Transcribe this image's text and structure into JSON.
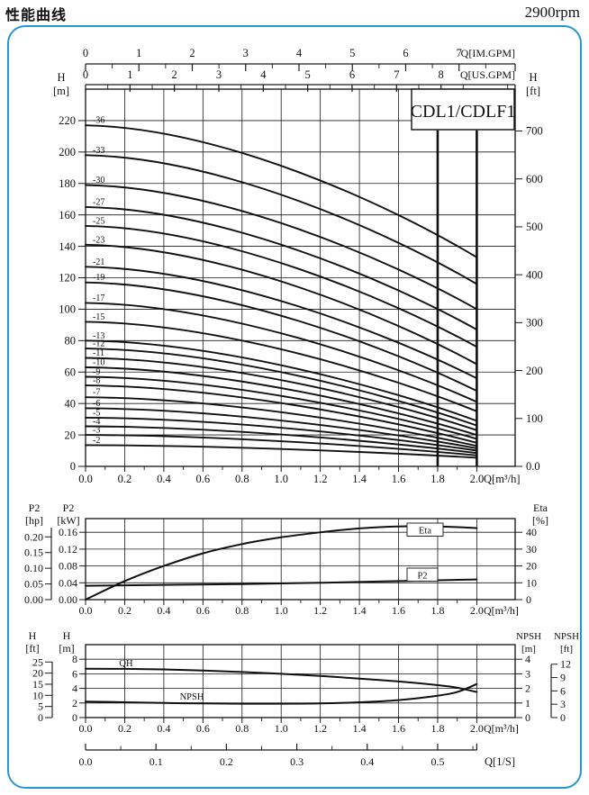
{
  "page": {
    "title": "性能曲线",
    "rpm": "2900rpm"
  },
  "colors": {
    "frame": "#2996d3",
    "line": "#111111",
    "grid": "#1a1a1a",
    "box_bg": "#ffffff"
  },
  "chart_data": [
    {
      "type": "line",
      "id": "head_chart",
      "title": "CDL1/CDLF1",
      "xlabel": "Q[m³/h]",
      "x_ticks": [
        "0.0",
        "0.2",
        "0.4",
        "0.6",
        "0.8",
        "1.0",
        "1.2",
        "1.4",
        "1.6",
        "1.8",
        "2.0"
      ],
      "q_range": [
        0,
        2.0
      ],
      "h_range_m": [
        0,
        240
      ],
      "ylabel_left": [
        "H",
        "[m]"
      ],
      "ylabel_right": [
        "H",
        "[ft]"
      ],
      "y_ticks_m": [
        0,
        20,
        40,
        60,
        80,
        100,
        120,
        140,
        160,
        180,
        200,
        220
      ],
      "y_ticks_ft": [
        "0.0",
        "100",
        "200",
        "300",
        "400",
        "500",
        "600",
        "700"
      ],
      "top_axis_im": {
        "label": "Q[IM.GPM]",
        "ticks": [
          0,
          1,
          2,
          3,
          4,
          5,
          6,
          7
        ],
        "gpm_per_m3h": 3.6662
      },
      "top_axis_us": {
        "label": "Q[US.GPM]",
        "ticks": [
          0,
          1,
          2,
          3,
          4,
          5,
          6,
          7,
          8
        ],
        "gpm_per_m3h": 4.4029
      },
      "grid_step_q": 0.2,
      "grid_step_m": 20,
      "duty_lines_q": [
        1.8,
        2.0
      ],
      "series": [
        {
          "name": "-36",
          "h0": 217,
          "h2": 133
        },
        {
          "name": "-33",
          "h0": 198,
          "h2": 116
        },
        {
          "name": "-30",
          "h0": 179,
          "h2": 100
        },
        {
          "name": "-27",
          "h0": 165,
          "h2": 87
        },
        {
          "name": "-25",
          "h0": 153,
          "h2": 76
        },
        {
          "name": "-23",
          "h0": 141,
          "h2": 65
        },
        {
          "name": "-21",
          "h0": 127,
          "h2": 56
        },
        {
          "name": "-19",
          "h0": 117,
          "h2": 48
        },
        {
          "name": "-17",
          "h0": 104,
          "h2": 41
        },
        {
          "name": "-15",
          "h0": 92,
          "h2": 35
        },
        {
          "name": "-13",
          "h0": 80,
          "h2": 29
        },
        {
          "name": "-12",
          "h0": 75,
          "h2": 26
        },
        {
          "name": "-11",
          "h0": 69,
          "h2": 23
        },
        {
          "name": "-10",
          "h0": 63,
          "h2": 20
        },
        {
          "name": "-9",
          "h0": 57,
          "h2": 17.5
        },
        {
          "name": "-8",
          "h0": 51.5,
          "h2": 15
        },
        {
          "name": "-7",
          "h0": 44,
          "h2": 13
        },
        {
          "name": "-6",
          "h0": 37,
          "h2": 11.5
        },
        {
          "name": "-5",
          "h0": 31,
          "h2": 10
        },
        {
          "name": "-4",
          "h0": 25.5,
          "h2": 8.5
        },
        {
          "name": "-3",
          "h0": 20,
          "h2": 7
        },
        {
          "name": "-2",
          "h0": 13.5,
          "h2": 5.5
        }
      ]
    },
    {
      "type": "line",
      "id": "power_chart",
      "xlabel": "Q[m³/h]",
      "x_ticks": [
        "0.0",
        "0.2",
        "0.4",
        "0.6",
        "0.8",
        "1.0",
        "1.2",
        "1.4",
        "1.6",
        "1.8",
        "2.0"
      ],
      "q_range": [
        0,
        2.0
      ],
      "left_axis_hp": {
        "header": [
          "P2",
          "[hp]"
        ],
        "ticks": [
          "0.20",
          "0.15",
          "0.10",
          "0.05",
          "0.00"
        ],
        "kw_per_hp": 0.7457
      },
      "left_axis_kw": {
        "header": [
          "P2",
          "[kW]"
        ],
        "ticks": [
          "0.16",
          "0.12",
          "0.08",
          "0.04",
          "0.00"
        ]
      },
      "right_axis_eta": {
        "header": [
          "Eta",
          "[%]"
        ],
        "ticks": [
          "40",
          "30",
          "20",
          "10",
          "0"
        ]
      },
      "kw_range": [
        0,
        0.1925
      ],
      "eta_range": [
        0,
        48
      ],
      "series": [
        {
          "name": "Eta",
          "axis": "eta",
          "boxed_label": true,
          "x": [
            0,
            0.2,
            0.4,
            0.6,
            0.8,
            1.0,
            1.2,
            1.4,
            1.6,
            1.8,
            2.0
          ],
          "y": [
            0,
            11,
            20,
            27.5,
            33,
            37,
            40,
            42.3,
            43.5,
            43.5,
            42.5
          ]
        },
        {
          "name": "P2",
          "axis": "kw",
          "boxed_label": true,
          "x": [
            0,
            0.4,
            0.8,
            1.2,
            1.6,
            2.0
          ],
          "y": [
            0.033,
            0.035,
            0.037,
            0.04,
            0.044,
            0.048
          ]
        }
      ]
    },
    {
      "type": "line",
      "id": "npsh_chart",
      "xlabel": "Q[m³/h]",
      "x_ticks": [
        "0.0",
        "0.2",
        "0.4",
        "0.6",
        "0.8",
        "1.0",
        "1.2",
        "1.4",
        "1.6",
        "1.8",
        "2.0"
      ],
      "q_range": [
        0,
        2.0
      ],
      "left_axis_ft": {
        "header": [
          "H",
          "[ft]"
        ],
        "ticks": [
          "25",
          "20",
          "15",
          "10",
          "5",
          "0"
        ]
      },
      "left_axis_m": {
        "header": [
          "H",
          "[m]"
        ],
        "ticks": [
          "8",
          "6",
          "4",
          "2",
          "0"
        ]
      },
      "right_axis_npm": {
        "header": [
          "NPSH",
          "[m]"
        ],
        "ticks": [
          "4",
          "3",
          "2",
          "1",
          "0"
        ]
      },
      "right_axis_npft": {
        "header": [
          "NPSH",
          "[ft]"
        ],
        "ticks": [
          "12",
          "9",
          "6",
          "3",
          "0"
        ]
      },
      "hm_range": [
        0,
        10
      ],
      "ls_axis": {
        "label": "Q[1/S]",
        "ticks": [
          "0.0",
          "0.1",
          "0.2",
          "0.3",
          "0.4",
          "0.5"
        ],
        "ls_per_m3h": 0.27778
      },
      "series": [
        {
          "name": "QH",
          "axis": "m",
          "x": [
            0,
            0.2,
            0.4,
            0.6,
            0.8,
            1.0,
            1.2,
            1.4,
            1.6,
            1.8,
            1.9,
            2.0
          ],
          "y": [
            6.7,
            6.68,
            6.6,
            6.45,
            6.25,
            6.0,
            5.7,
            5.35,
            4.95,
            4.45,
            4.1,
            3.5
          ]
        },
        {
          "name": "NPSH",
          "axis": "npsh",
          "x": [
            0,
            0.2,
            0.4,
            0.6,
            0.8,
            1.0,
            1.2,
            1.4,
            1.6,
            1.8,
            1.9,
            2.0
          ],
          "y": [
            1.1,
            1.05,
            1.0,
            0.97,
            0.95,
            0.95,
            0.97,
            1.05,
            1.2,
            1.5,
            1.75,
            2.3
          ]
        }
      ]
    }
  ]
}
